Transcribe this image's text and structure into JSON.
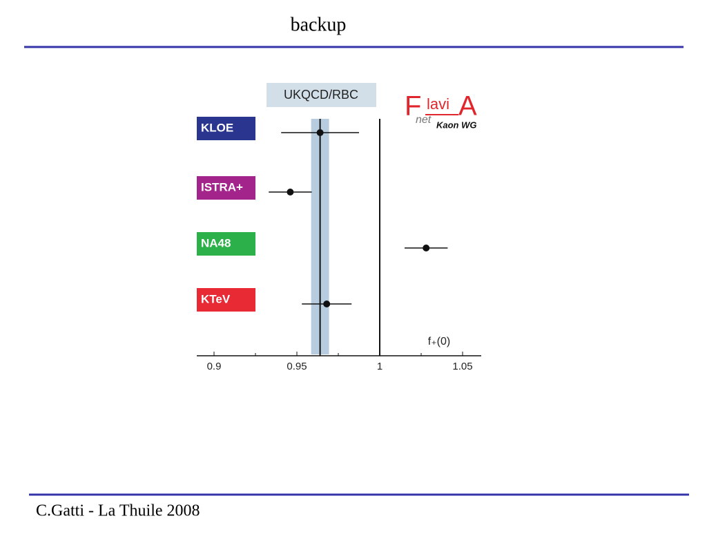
{
  "slide": {
    "title": "backup",
    "footer": "C.Gatti - La Thuile 2008"
  },
  "logo": {
    "f": "F",
    "lavi": "lavi",
    "a": "A",
    "net": "net",
    "wg": "Kaon WG"
  },
  "chart_data": {
    "type": "forest",
    "categories": [
      "KLOE",
      "ISTRA+",
      "NA48",
      "KTeV"
    ],
    "category_colors": [
      "#2a3590",
      "#a3258c",
      "#2bb04a",
      "#e82a35"
    ],
    "values": [
      0.964,
      0.946,
      1.028,
      0.968
    ],
    "errors": [
      0.0235,
      0.013,
      0.013,
      0.015
    ],
    "color": "#111111",
    "band": {
      "label": "UKQCD/RBC",
      "value": 0.964,
      "error": 0.0054,
      "color": "#b8cce0"
    },
    "reference": 1,
    "xlabel": "f₊(0)",
    "xlim": [
      0.89,
      1.06
    ],
    "xticks": [
      0.9,
      0.95,
      1,
      1.05
    ],
    "minor_xticks": [
      0.925,
      0.975,
      1.025
    ]
  }
}
